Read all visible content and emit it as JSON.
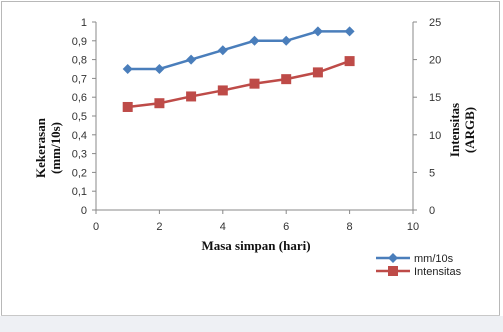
{
  "chart_data": {
    "type": "line",
    "x_axis": {
      "label": "Masa simpan (hari)",
      "range": [
        0,
        10
      ],
      "ticks": [
        0,
        2,
        4,
        6,
        8,
        10
      ]
    },
    "y_axis_left": {
      "label_line1": "Kekerasan",
      "label_line2": "(mm/10s)",
      "range": [
        0,
        1
      ],
      "ticks": [
        "0",
        "0,1",
        "0,2",
        "0,3",
        "0,4",
        "0,5",
        "0,6",
        "0,7",
        "0,8",
        "0,9",
        "1"
      ]
    },
    "y_axis_right": {
      "label_line1": "Intensitas",
      "label_line2": "(ARGB)",
      "range": [
        0,
        25
      ],
      "ticks": [
        "0",
        "5",
        "10",
        "15",
        "20",
        "25"
      ]
    },
    "x": [
      1,
      2,
      3,
      4,
      5,
      6,
      7,
      8
    ],
    "series": [
      {
        "name": "mm/10s",
        "axis": "left",
        "color": "#4a7ebb",
        "marker": "diamond",
        "values": [
          0.75,
          0.75,
          0.8,
          0.85,
          0.9,
          0.9,
          0.95,
          0.95
        ]
      },
      {
        "name": "Intensitas",
        "axis": "right",
        "color": "#be4b48",
        "marker": "square",
        "values": [
          13.7,
          14.2,
          15.1,
          15.9,
          16.8,
          17.4,
          18.3,
          19.8
        ]
      }
    ],
    "legend_position": "bottom-right",
    "grid": false
  }
}
